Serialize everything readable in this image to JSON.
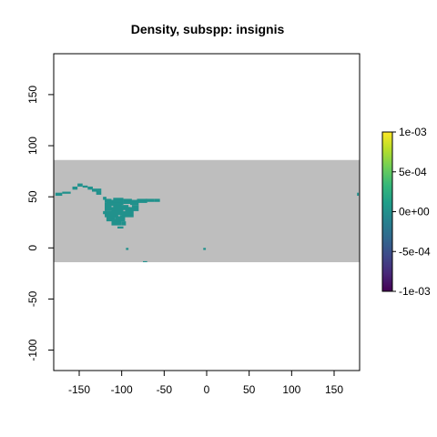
{
  "chart_data": {
    "type": "heatmap",
    "title": "Density, subspp: insignis",
    "xlabel": "",
    "ylabel": "",
    "xlim": [
      -180,
      180
    ],
    "ylim": [
      -120,
      190
    ],
    "x_ticks": [
      -150,
      -100,
      -50,
      0,
      50,
      100,
      150
    ],
    "y_ticks": [
      -100,
      -50,
      0,
      50,
      100,
      150
    ],
    "x_tick_labels": [
      "-150",
      "-100",
      "-50",
      "0",
      "50",
      "100",
      "150"
    ],
    "y_tick_labels": [
      "-100",
      "-50",
      "0",
      "50",
      "100",
      "150"
    ],
    "raster_extent": {
      "xmin": -180,
      "xmax": 180,
      "ymin": -14,
      "ymax": 86
    },
    "raster_value_background": "NA",
    "occupied_cells_value": 0,
    "occupied_regions": [
      {
        "name": "North America main patch",
        "lon": [
          -125,
          -50
        ],
        "lat": [
          18,
          50
        ]
      },
      {
        "name": "Alaska strip",
        "lon": [
          -180,
          -148
        ],
        "lat": [
          50,
          55
        ]
      },
      {
        "name": "far-east point",
        "lon": [
          177,
          179
        ],
        "lat": [
          51,
          53
        ]
      },
      {
        "name": "Caribbean points",
        "lon": [
          -100,
          0
        ],
        "lat": [
          -14,
          0
        ]
      }
    ],
    "legend": {
      "position": "right",
      "labels": [
        "1e-03",
        "5e-04",
        "0e+00",
        "-5e-04",
        "-1e-03"
      ],
      "values": [
        0.001,
        0.0005,
        0,
        -0.0005,
        -0.001
      ],
      "range": [
        -0.001,
        0.001
      ],
      "palette": "viridis"
    }
  },
  "colors": {
    "raster_background": "#bebebe",
    "occupied": "#21918c",
    "frame": "#000000"
  }
}
